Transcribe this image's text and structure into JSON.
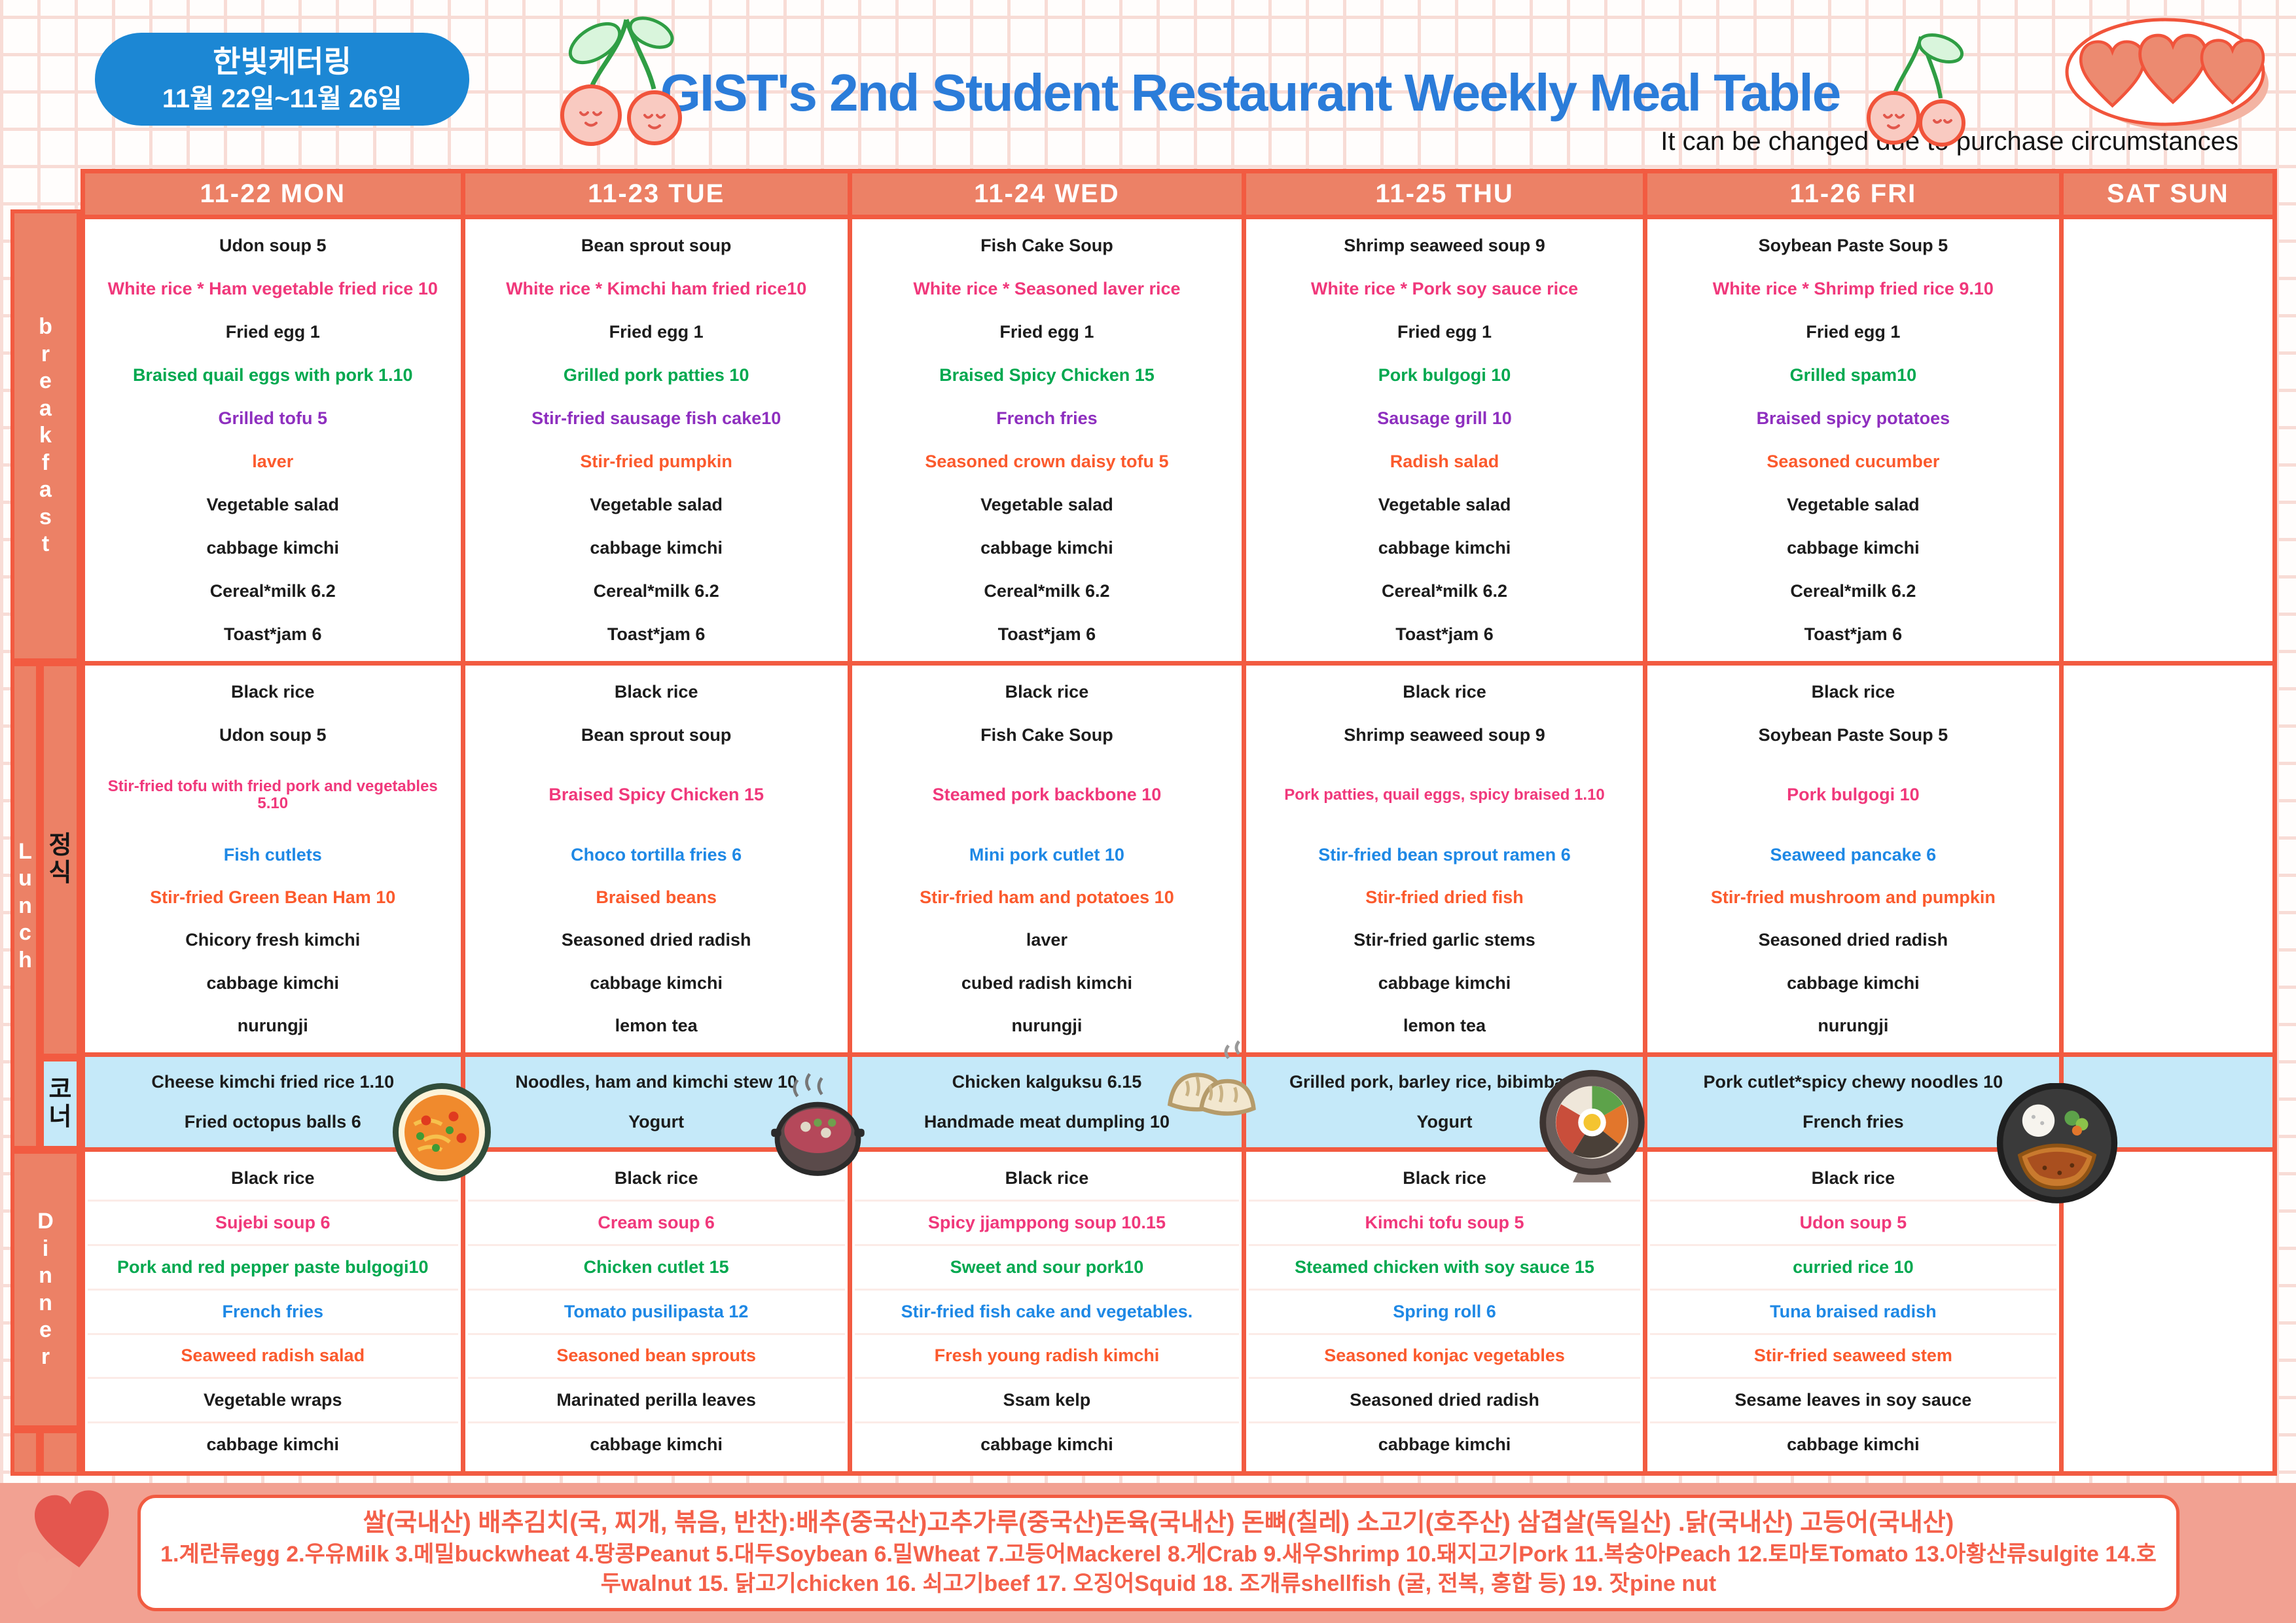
{
  "badge": {
    "line1": "한빛케터링",
    "line2": "11월 22일~11월 26일"
  },
  "title": "GIST's 2nd Student Restaurant Weekly Meal Table",
  "subtitle": "It can be changed due to purchase circumstances",
  "palette": {
    "table_border_orange": "#f25b41",
    "header_salmon": "#ec8166",
    "corner_blue": "#c5e9f9",
    "badge_blue": "#1c87d4",
    "title_blue": "#2b7cd9",
    "item_pink": "#f0387b",
    "item_green": "#00a84f",
    "item_purple": "#8e2fbf",
    "item_orange": "#fb5a2d",
    "item_blue": "#1e88e5",
    "footer_band_pink": "#f2a192",
    "footer_text_orange": "#f4604a"
  },
  "header": {
    "columns": [
      "11-22 MON",
      "11-23 TUE",
      "11-24 WED",
      "11-25 THU",
      "11-26 FRI",
      "SAT SUN"
    ]
  },
  "side_labels": {
    "breakfast": "breakfast",
    "lunch": "Lunch",
    "lunch_sub": "정식",
    "corner": "코너",
    "dinner": "Dinner"
  },
  "menu": {
    "breakfast": [
      [
        {
          "t": "Udon soup 5",
          "c": "k"
        },
        {
          "t": "White rice * Ham vegetable fried rice 10",
          "c": "p"
        },
        {
          "t": "Fried egg 1",
          "c": "k"
        },
        {
          "t": "Braised quail eggs with pork 1.10",
          "c": "g"
        },
        {
          "t": "Grilled tofu 5",
          "c": "u"
        },
        {
          "t": "laver",
          "c": "o"
        },
        {
          "t": "Vegetable salad",
          "c": "k"
        },
        {
          "t": "cabbage kimchi",
          "c": "k"
        },
        {
          "t": "Cereal*milk 6.2",
          "c": "k"
        },
        {
          "t": "Toast*jam 6",
          "c": "k"
        }
      ],
      [
        {
          "t": "Bean sprout soup",
          "c": "k"
        },
        {
          "t": "White rice * Kimchi ham fried rice10",
          "c": "p"
        },
        {
          "t": "Fried egg 1",
          "c": "k"
        },
        {
          "t": "Grilled pork patties 10",
          "c": "g"
        },
        {
          "t": "Stir-fried sausage fish cake10",
          "c": "u"
        },
        {
          "t": "Stir-fried pumpkin",
          "c": "o"
        },
        {
          "t": "Vegetable salad",
          "c": "k"
        },
        {
          "t": "cabbage kimchi",
          "c": "k"
        },
        {
          "t": "Cereal*milk 6.2",
          "c": "k"
        },
        {
          "t": "Toast*jam 6",
          "c": "k"
        }
      ],
      [
        {
          "t": "Fish Cake Soup",
          "c": "k"
        },
        {
          "t": "White rice * Seasoned laver rice",
          "c": "p"
        },
        {
          "t": "Fried egg 1",
          "c": "k"
        },
        {
          "t": "Braised Spicy Chicken 15",
          "c": "g"
        },
        {
          "t": "French fries",
          "c": "u"
        },
        {
          "t": "Seasoned crown daisy tofu 5",
          "c": "o"
        },
        {
          "t": "Vegetable salad",
          "c": "k"
        },
        {
          "t": "cabbage kimchi",
          "c": "k"
        },
        {
          "t": "Cereal*milk 6.2",
          "c": "k"
        },
        {
          "t": "Toast*jam 6",
          "c": "k"
        }
      ],
      [
        {
          "t": "Shrimp seaweed soup 9",
          "c": "k"
        },
        {
          "t": "White rice * Pork soy sauce rice",
          "c": "p"
        },
        {
          "t": "Fried egg 1",
          "c": "k"
        },
        {
          "t": "Pork bulgogi 10",
          "c": "g"
        },
        {
          "t": "Sausage grill 10",
          "c": "u"
        },
        {
          "t": "Radish salad",
          "c": "o"
        },
        {
          "t": "Vegetable salad",
          "c": "k"
        },
        {
          "t": "cabbage kimchi",
          "c": "k"
        },
        {
          "t": "Cereal*milk 6.2",
          "c": "k"
        },
        {
          "t": "Toast*jam 6",
          "c": "k"
        }
      ],
      [
        {
          "t": "Soybean Paste Soup 5",
          "c": "k"
        },
        {
          "t": "White rice * Shrimp fried rice 9.10",
          "c": "p"
        },
        {
          "t": "Fried egg 1",
          "c": "k"
        },
        {
          "t": "Grilled spam10",
          "c": "g"
        },
        {
          "t": "Braised spicy potatoes",
          "c": "u"
        },
        {
          "t": "Seasoned cucumber",
          "c": "o"
        },
        {
          "t": "Vegetable salad",
          "c": "k"
        },
        {
          "t": "cabbage kimchi",
          "c": "k"
        },
        {
          "t": "Cereal*milk 6.2",
          "c": "k"
        },
        {
          "t": "Toast*jam 6",
          "c": "k"
        }
      ]
    ],
    "lunch": [
      [
        {
          "t": "Black rice",
          "c": "k"
        },
        {
          "t": "Udon soup 5",
          "c": "k"
        },
        {
          "t": "Stir-fried tofu with fried pork and vegetables 5.10",
          "c": "p"
        },
        {
          "t": "Fish cutlets",
          "c": "b"
        },
        {
          "t": "Stir-fried Green Bean Ham 10",
          "c": "o"
        },
        {
          "t": "Chicory fresh kimchi",
          "c": "k"
        },
        {
          "t": "cabbage kimchi",
          "c": "k"
        },
        {
          "t": "nurungji",
          "c": "k"
        }
      ],
      [
        {
          "t": "Black rice",
          "c": "k"
        },
        {
          "t": "Bean sprout soup",
          "c": "k"
        },
        {
          "t": "Braised Spicy Chicken 15",
          "c": "p"
        },
        {
          "t": "Choco tortilla fries 6",
          "c": "b"
        },
        {
          "t": "Braised beans",
          "c": "o"
        },
        {
          "t": "Seasoned dried radish",
          "c": "k"
        },
        {
          "t": "cabbage kimchi",
          "c": "k"
        },
        {
          "t": "lemon tea",
          "c": "k"
        }
      ],
      [
        {
          "t": "Black rice",
          "c": "k"
        },
        {
          "t": "Fish Cake Soup",
          "c": "k"
        },
        {
          "t": "Steamed pork backbone 10",
          "c": "p"
        },
        {
          "t": "Mini pork cutlet 10",
          "c": "b"
        },
        {
          "t": "Stir-fried ham and potatoes 10",
          "c": "o"
        },
        {
          "t": "laver",
          "c": "k"
        },
        {
          "t": "cubed radish kimchi",
          "c": "k"
        },
        {
          "t": "nurungji",
          "c": "k"
        }
      ],
      [
        {
          "t": "Black rice",
          "c": "k"
        },
        {
          "t": "Shrimp seaweed soup 9",
          "c": "k"
        },
        {
          "t": "Pork patties, quail eggs, spicy braised 1.10",
          "c": "p"
        },
        {
          "t": "Stir-fried bean sprout ramen 6",
          "c": "b"
        },
        {
          "t": "Stir-fried dried fish",
          "c": "o"
        },
        {
          "t": "Stir-fried garlic stems",
          "c": "k"
        },
        {
          "t": "cabbage kimchi",
          "c": "k"
        },
        {
          "t": "lemon tea",
          "c": "k"
        }
      ],
      [
        {
          "t": "Black rice",
          "c": "k"
        },
        {
          "t": "Soybean Paste Soup 5",
          "c": "k"
        },
        {
          "t": "Pork bulgogi 10",
          "c": "p"
        },
        {
          "t": "Seaweed pancake 6",
          "c": "b"
        },
        {
          "t": "Stir-fried mushroom and pumpkin",
          "c": "o"
        },
        {
          "t": "Seasoned dried radish",
          "c": "k"
        },
        {
          "t": "cabbage kimchi",
          "c": "k"
        },
        {
          "t": "nurungji",
          "c": "k"
        }
      ]
    ],
    "corner": [
      [
        {
          "t": "Cheese kimchi fried rice 1.10",
          "c": "k"
        },
        {
          "t": "Fried octopus balls 6",
          "c": "k"
        }
      ],
      [
        {
          "t": "Noodles, ham and kimchi stew 10",
          "c": "k"
        },
        {
          "t": "Yogurt",
          "c": "k"
        }
      ],
      [
        {
          "t": "Chicken kalguksu 6.15",
          "c": "k"
        },
        {
          "t": "Handmade meat dumpling 10",
          "c": "k"
        }
      ],
      [
        {
          "t": "Grilled pork, barley rice, bibimbap 10",
          "c": "k"
        },
        {
          "t": "Yogurt",
          "c": "k"
        }
      ],
      [
        {
          "t": "Pork cutlet*spicy chewy noodles 10",
          "c": "k"
        },
        {
          "t": "French fries",
          "c": "k"
        }
      ]
    ],
    "dinner": [
      [
        {
          "t": "Black rice",
          "c": "k"
        },
        {
          "t": "Sujebi soup 6",
          "c": "p"
        },
        {
          "t": "Pork and red pepper paste bulgogi10",
          "c": "g"
        },
        {
          "t": "French fries",
          "c": "b"
        },
        {
          "t": "Seaweed radish salad",
          "c": "o"
        },
        {
          "t": "Vegetable wraps",
          "c": "k"
        },
        {
          "t": "cabbage kimchi",
          "c": "k"
        }
      ],
      [
        {
          "t": "Black rice",
          "c": "k"
        },
        {
          "t": "Cream soup 6",
          "c": "p"
        },
        {
          "t": "Chicken cutlet 15",
          "c": "g"
        },
        {
          "t": "Tomato pusilipasta 12",
          "c": "b"
        },
        {
          "t": "Seasoned bean sprouts",
          "c": "o"
        },
        {
          "t": "Marinated perilla leaves",
          "c": "k"
        },
        {
          "t": "cabbage kimchi",
          "c": "k"
        }
      ],
      [
        {
          "t": "Black rice",
          "c": "k"
        },
        {
          "t": "Spicy jjamppong soup 10.15",
          "c": "p"
        },
        {
          "t": "Sweet and sour pork10",
          "c": "g"
        },
        {
          "t": "Stir-fried fish cake and vegetables.",
          "c": "b"
        },
        {
          "t": "Fresh young radish kimchi",
          "c": "o"
        },
        {
          "t": "Ssam kelp",
          "c": "k"
        },
        {
          "t": "cabbage kimchi",
          "c": "k"
        }
      ],
      [
        {
          "t": "Black rice",
          "c": "k"
        },
        {
          "t": "Kimchi tofu soup 5",
          "c": "p"
        },
        {
          "t": "Steamed chicken with soy sauce 15",
          "c": "g"
        },
        {
          "t": "Spring roll 6",
          "c": "b"
        },
        {
          "t": "Seasoned konjac vegetables",
          "c": "o"
        },
        {
          "t": "Seasoned dried radish",
          "c": "k"
        },
        {
          "t": "cabbage kimchi",
          "c": "k"
        }
      ],
      [
        {
          "t": "Black rice",
          "c": "k"
        },
        {
          "t": "Udon soup 5",
          "c": "p"
        },
        {
          "t": "curried rice 10",
          "c": "g"
        },
        {
          "t": "Tuna braised radish",
          "c": "b"
        },
        {
          "t": "Stir-fried seaweed stem",
          "c": "o"
        },
        {
          "t": "Sesame leaves in soy sauce",
          "c": "k"
        },
        {
          "t": "cabbage kimchi",
          "c": "k"
        }
      ]
    ]
  },
  "illustrations": [
    "fried-rice-pan",
    "hot-pot",
    "dumplings",
    "bibimbap",
    "pork-cutlet-plate"
  ],
  "footer": {
    "line1": "쌀(국내산) 배추김치(국, 찌개, 볶음, 반찬):배추(중국산)고추가루(중국산)돈육(국내산) 돈뼈(칠레) 소고기(호주산) 삼겹살(독일산) .닭(국내산) 고등어(국내산)",
    "line2": "1.계란류egg 2.우유Milk 3.메밀buckwheat 4.땅콩Peanut 5.대두Soybean 6.밀Wheat 7.고등어Mackerel 8.게Crab 9.새우Shrimp 10.돼지고기Pork 11.복숭아Peach 12.토마토Tomato 13.아황산류sulgite 14.호",
    "line3": "두walnut 15. 닭고기chicken 16. 쇠고기beef 17. 오징어Squid 18. 조개류shellfish (굴, 전복, 홍합 등) 19. 잣pine nut"
  }
}
